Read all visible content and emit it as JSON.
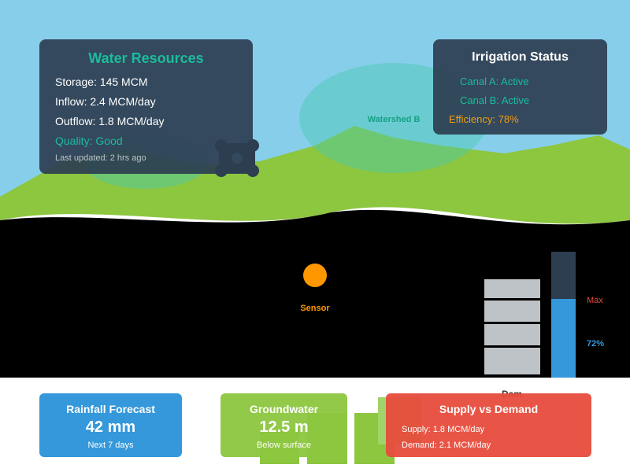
{
  "resources": {
    "title": "Water Resources",
    "storage": "Storage: 145 MCM",
    "inflow": "Inflow: 2.4 MCM/day",
    "outflow": "Outflow: 1.8 MCM/day",
    "quality": "Quality: Good",
    "updated": "Last updated: 2 hrs ago"
  },
  "irrigation": {
    "title": "Irrigation Status",
    "canal_a": "Canal A: Active",
    "canal_b": "Canal B: Active",
    "efficiency": "Efficiency: 78%"
  },
  "map": {
    "watershed_label": "Watershed B",
    "sensor_label": "Sensor",
    "dam_label": "Dam",
    "gauge_max_label": "Max",
    "gauge_percent_label": "72%",
    "gauge_level": 0.72
  },
  "cards": {
    "rainfall": {
      "title": "Rainfall Forecast",
      "value": "42 mm",
      "sub": "Next 7 days"
    },
    "groundwater": {
      "title": "Groundwater",
      "value": "12.5 m",
      "sub": "Below surface"
    },
    "supply": {
      "title": "Supply vs Demand",
      "supply": "Supply: 1.8 MCM/day",
      "demand": "Demand: 2.1 MCM/day"
    }
  },
  "colors": {
    "sky": "#87ceeb",
    "hills": "#8dc63f",
    "panel": "#2c3e50",
    "accent_teal": "#1abc9c",
    "accent_orange": "#f39c12",
    "water_blue": "#3498db",
    "alert_red": "#e74c3c"
  }
}
